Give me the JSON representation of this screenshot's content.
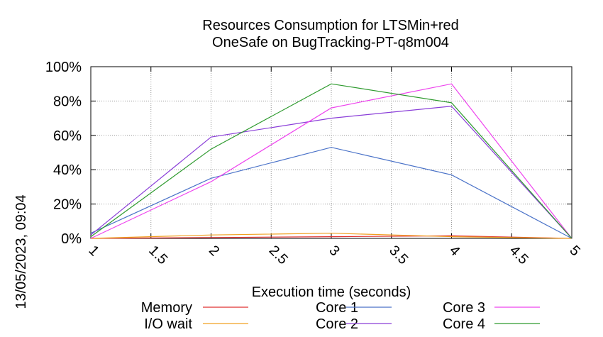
{
  "chart_data": {
    "type": "line",
    "title": [
      "Resources Consumption for LTSMin+red",
      "OneSafe on BugTracking-PT-q8m004"
    ],
    "xlabel": "Execution time (seconds)",
    "ylabel": "",
    "timestamp": "13/05/2023, 09:04",
    "xlim": [
      1,
      5
    ],
    "ylim": [
      0,
      100
    ],
    "x_ticks": [
      1,
      1.5,
      2,
      2.5,
      3,
      3.5,
      4,
      4.5,
      5
    ],
    "x_tick_labels": [
      "1",
      "1.5",
      "2",
      "2.5",
      "3",
      "3.5",
      "4",
      "4.5",
      "5"
    ],
    "y_ticks": [
      0,
      20,
      40,
      60,
      80,
      100
    ],
    "y_tick_labels": [
      "0%",
      "20%",
      "40%",
      "60%",
      "80%",
      "100%"
    ],
    "grid": true,
    "legend_position": "bottom",
    "series": [
      {
        "name": "Memory",
        "color": "#e03030",
        "x": [
          1,
          2,
          3,
          4,
          5
        ],
        "y": [
          0,
          0.5,
          1,
          1.5,
          0
        ]
      },
      {
        "name": "I/O wait",
        "color": "#f0a020",
        "x": [
          1,
          2,
          3,
          4,
          5
        ],
        "y": [
          0,
          2,
          3,
          1,
          0
        ]
      },
      {
        "name": "Core 1",
        "color": "#4a72c8",
        "x": [
          1,
          2,
          3,
          4,
          5
        ],
        "y": [
          3,
          35,
          53,
          37,
          0
        ]
      },
      {
        "name": "Core 2",
        "color": "#8a3ed8",
        "x": [
          1,
          2,
          3,
          4,
          5
        ],
        "y": [
          2,
          59,
          70,
          77,
          0
        ]
      },
      {
        "name": "Core 3",
        "color": "#ee44ee",
        "x": [
          1,
          2,
          3,
          4,
          5
        ],
        "y": [
          0,
          33,
          76,
          90,
          0
        ]
      },
      {
        "name": "Core 4",
        "color": "#2e9a2e",
        "x": [
          1,
          2,
          3,
          4,
          5
        ],
        "y": [
          1,
          52,
          90,
          79,
          0
        ]
      }
    ]
  }
}
